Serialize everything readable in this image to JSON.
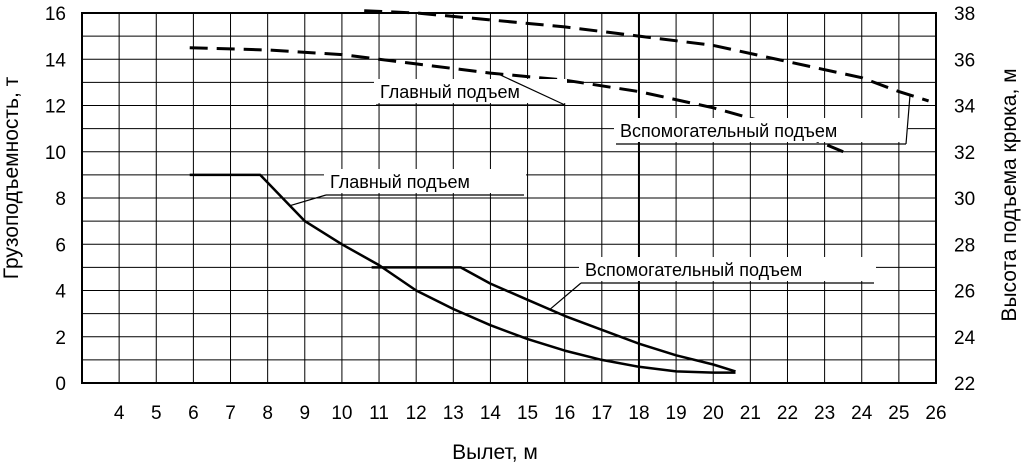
{
  "chart_data": {
    "type": "line",
    "xlabel": "Вылет, м",
    "ylabel": "Грузоподъемность, т",
    "y2label": "Высота подъема крюка, м",
    "xlim": [
      3,
      26
    ],
    "ylim": [
      0,
      16
    ],
    "y2lim": [
      22,
      38
    ],
    "grid": true,
    "x_ticks": [
      4,
      5,
      6,
      7,
      8,
      9,
      10,
      11,
      12,
      13,
      14,
      15,
      16,
      17,
      18,
      19,
      20,
      21,
      22,
      23,
      24,
      25,
      26
    ],
    "y_ticks": [
      0,
      2,
      4,
      6,
      8,
      10,
      12,
      14,
      16
    ],
    "y2_ticks": [
      22,
      24,
      26,
      28,
      30,
      32,
      34,
      36,
      38
    ],
    "series": [
      {
        "name": "Главный подъем",
        "axis": "load",
        "style": "solid",
        "x": [
          5.9,
          7.8,
          8.4,
          9.0,
          10.0,
          11.0,
          12.0,
          13.0,
          14.0,
          15.0,
          16.0,
          17.0,
          18.0,
          19.0,
          20.0,
          20.6
        ],
        "y": [
          9.0,
          9.0,
          8.0,
          7.0,
          6.0,
          5.1,
          4.0,
          3.2,
          2.5,
          1.9,
          1.4,
          1.0,
          0.7,
          0.5,
          0.45,
          0.45
        ]
      },
      {
        "name": "Вспомогательный подъем",
        "axis": "load",
        "style": "solid",
        "x": [
          10.8,
          13.2,
          14.0,
          15.0,
          16.0,
          17.0,
          18.0,
          19.0,
          20.0,
          20.6
        ],
        "y": [
          5.0,
          5.0,
          4.3,
          3.6,
          2.9,
          2.3,
          1.7,
          1.2,
          0.8,
          0.5
        ]
      },
      {
        "name": "Главный подъем",
        "axis": "height",
        "style": "dashed",
        "x": [
          5.9,
          8.0,
          10.0,
          12.0,
          14.0,
          16.0,
          18.0,
          20.0,
          22.0,
          23.5
        ],
        "y": [
          36.5,
          36.4,
          36.2,
          35.8,
          35.4,
          35.1,
          34.6,
          33.9,
          33.0,
          32.0
        ]
      },
      {
        "name": "Вспомогательный подъем",
        "axis": "height",
        "style": "dashed",
        "x": [
          10.6,
          12.0,
          14.0,
          16.0,
          18.0,
          20.0,
          22.0,
          24.0,
          25.0,
          25.8
        ],
        "y": [
          38.1,
          38.0,
          37.7,
          37.4,
          37.0,
          36.6,
          35.9,
          35.2,
          34.6,
          34.2
        ]
      }
    ],
    "annotations": [
      {
        "text": "Главный подъем",
        "target": "height-main"
      },
      {
        "text": "Вспомогательный подъем",
        "target": "height-aux"
      },
      {
        "text": "Главный подъем",
        "target": "load-main"
      },
      {
        "text": "Вспомогательный подъем",
        "target": "load-aux"
      }
    ]
  }
}
